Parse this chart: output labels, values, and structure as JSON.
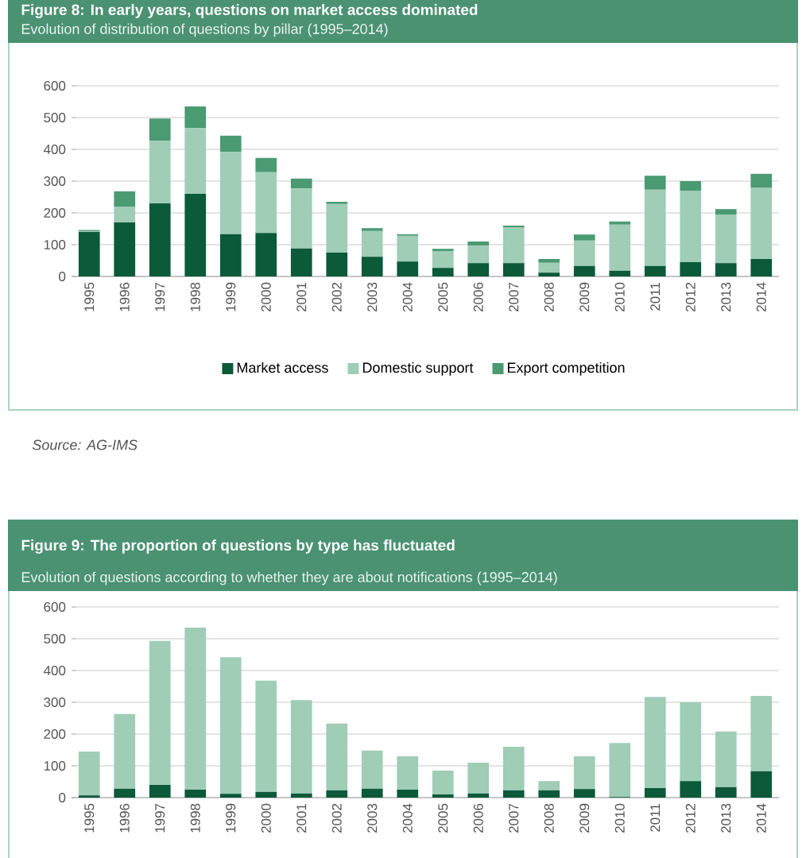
{
  "chart_data": [
    {
      "type": "bar",
      "title": "Figure 8: In early years, questions on market access dominated",
      "subtitle": "Evolution of distribution of questions by pillar (1995–2014)",
      "categories": [
        "1995",
        "1996",
        "1997",
        "1998",
        "1999",
        "2000",
        "2001",
        "2002",
        "2003",
        "2004",
        "2005",
        "2006",
        "2007",
        "2008",
        "2009",
        "2010",
        "2011",
        "2012",
        "2013",
        "2014"
      ],
      "stacked": true,
      "ylim": [
        0,
        600
      ],
      "yticks": [
        0,
        100,
        200,
        300,
        400,
        500,
        600
      ],
      "grid": "y",
      "legend": "bottom",
      "series": [
        {
          "name": "Market access",
          "color": "#0b5a3a",
          "values": [
            140,
            170,
            230,
            260,
            133,
            137,
            88,
            75,
            62,
            47,
            27,
            42,
            42,
            12,
            33,
            18,
            33,
            45,
            42,
            55
          ]
        },
        {
          "name": "Domestic support",
          "color": "#9fcdb6",
          "values": [
            2,
            50,
            197,
            207,
            259,
            191,
            189,
            153,
            81,
            81,
            53,
            55,
            113,
            31,
            80,
            145,
            240,
            225,
            153,
            225
          ]
        },
        {
          "name": "Export competition",
          "color": "#4a9a72",
          "values": [
            4,
            48,
            70,
            68,
            51,
            45,
            31,
            7,
            9,
            5,
            7,
            13,
            5,
            12,
            19,
            10,
            44,
            30,
            17,
            43
          ]
        }
      ],
      "annotations": [
        "Source: AG-IMS"
      ]
    },
    {
      "type": "bar",
      "title": "Figure 9: The proportion of questions by type has fluctuated",
      "subtitle": "Evolution of questions according to whether they are about notifications (1995–2014)",
      "categories": [
        "1995",
        "1996",
        "1997",
        "1998",
        "1999",
        "2000",
        "2001",
        "2002",
        "2003",
        "2004",
        "2005",
        "2006",
        "2007",
        "2008",
        "2009",
        "2010",
        "2011",
        "2012",
        "2013",
        "2014"
      ],
      "stacked": true,
      "ylim": [
        0,
        600
      ],
      "yticks": [
        0,
        100,
        200,
        300,
        400,
        500,
        600
      ],
      "grid": "y",
      "series": [
        {
          "color": "#0b5a3a",
          "values": [
            7,
            28,
            40,
            25,
            12,
            18,
            13,
            23,
            28,
            25,
            10,
            13,
            23,
            23,
            27,
            2,
            30,
            52,
            33,
            83
          ]
        },
        {
          "color": "#9fcdb6",
          "values": [
            138,
            235,
            453,
            510,
            430,
            350,
            294,
            210,
            120,
            105,
            75,
            97,
            137,
            29,
            103,
            170,
            287,
            248,
            175,
            237
          ]
        }
      ]
    }
  ]
}
